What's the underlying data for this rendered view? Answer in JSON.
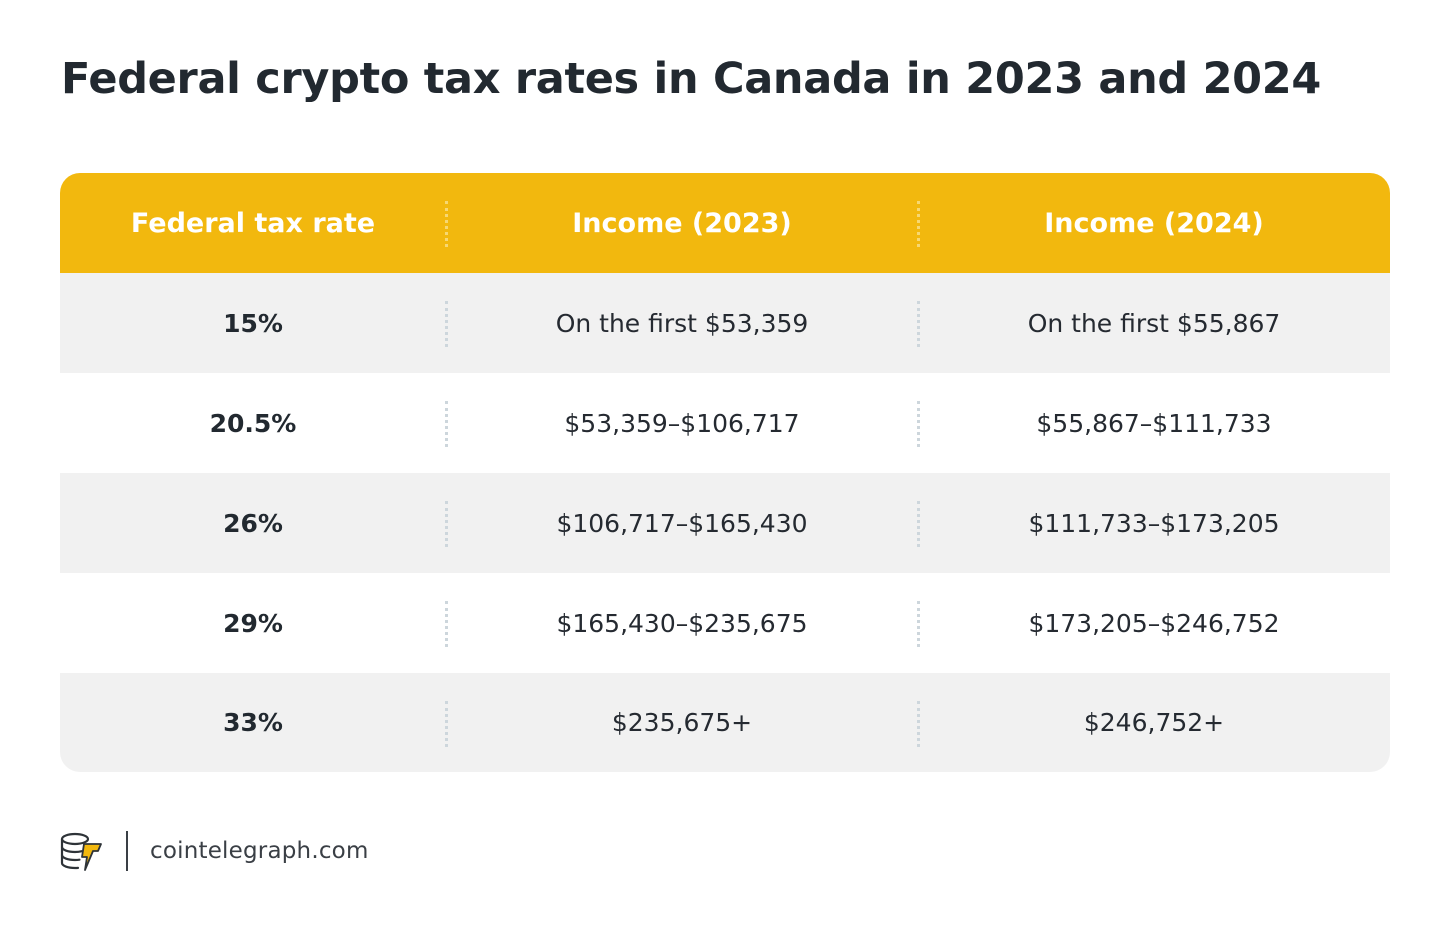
{
  "title": "Federal crypto tax rates in Canada in 2023 and 2024",
  "table": {
    "headers": [
      "Federal tax rate",
      "Income (2023)",
      "Income (2024)"
    ],
    "rows": [
      [
        "15%",
        "On the first $53,359",
        "On the first $55,867"
      ],
      [
        "20.5%",
        "$53,359–$106,717",
        "$55,867–$111,733"
      ],
      [
        "26%",
        "$106,717–$165,430",
        "$111,733–$173,205"
      ],
      [
        "29%",
        "$165,430–$235,675",
        "$173,205–$246,752"
      ],
      [
        "33%",
        "$235,675+",
        "$246,752+"
      ]
    ]
  },
  "footer": {
    "site": "cointelegraph.com",
    "logo_icon": "cointelegraph-logo-icon"
  },
  "colors": {
    "header_bg": "#f2b80e",
    "row_alt_bg": "#f1f1f1",
    "text": "#222930"
  }
}
